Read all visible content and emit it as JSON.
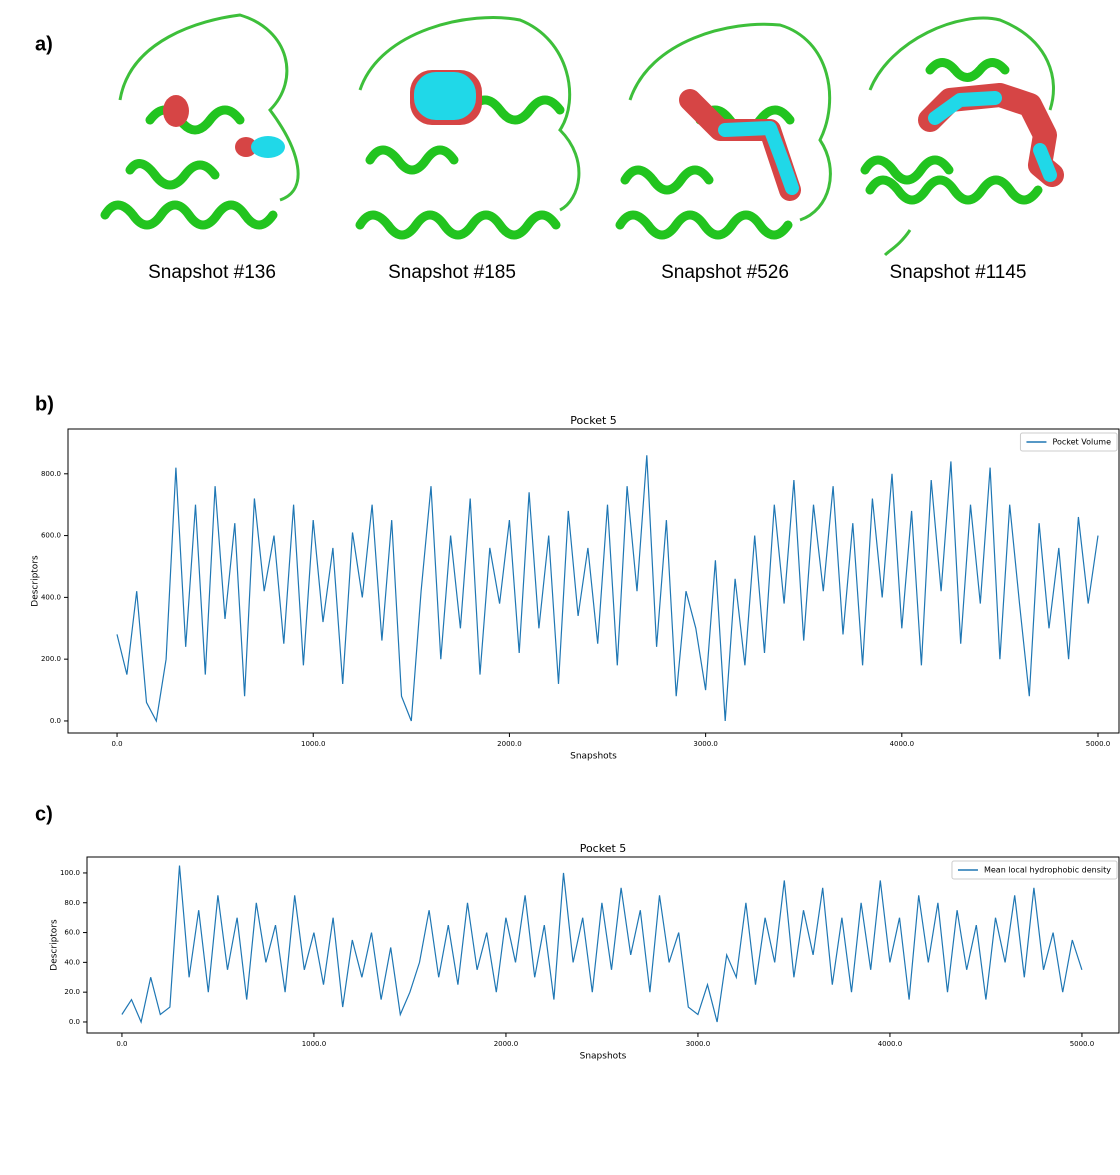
{
  "panel_a": {
    "label": "a)",
    "captions": [
      "Snapshot #136",
      "Snapshot #185",
      "Snapshot #526",
      "Snapshot #1145"
    ]
  },
  "panel_b": {
    "label": "b)"
  },
  "panel_c": {
    "label": "c)"
  },
  "chart_data": [
    {
      "type": "line",
      "title": "Pocket 5",
      "x_label": "Snapshots",
      "y_label": "Descriptors",
      "xlim": [
        -250,
        5107
      ],
      "ylim": [
        -39,
        945
      ],
      "legend": "upper right",
      "xticks": [
        {
          "value": 0,
          "label": "0.0"
        },
        {
          "value": 1000,
          "label": "1000.0"
        },
        {
          "value": 2000,
          "label": "2000.0"
        },
        {
          "value": 3000,
          "label": "3000.0"
        },
        {
          "value": 4000,
          "label": "4000.0"
        },
        {
          "value": 5000,
          "label": "5000.0"
        }
      ],
      "yticks": [
        {
          "value": 0,
          "label": "0.0"
        },
        {
          "value": 200,
          "label": "200.0"
        },
        {
          "value": 400,
          "label": "400.0"
        },
        {
          "value": 600,
          "label": "600.0"
        },
        {
          "value": 800,
          "label": "800.0"
        }
      ],
      "x": [
        0,
        50,
        100,
        150,
        200,
        250,
        300,
        350,
        400,
        450,
        500,
        550,
        600,
        650,
        700,
        750,
        800,
        850,
        900,
        950,
        1000,
        1050,
        1100,
        1150,
        1200,
        1250,
        1300,
        1350,
        1400,
        1450,
        1500,
        1550,
        1600,
        1650,
        1700,
        1750,
        1800,
        1850,
        1900,
        1950,
        2000,
        2050,
        2100,
        2150,
        2200,
        2250,
        2300,
        2350,
        2400,
        2450,
        2500,
        2550,
        2600,
        2650,
        2700,
        2750,
        2800,
        2850,
        2900,
        2950,
        3000,
        3050,
        3100,
        3150,
        3200,
        3250,
        3300,
        3350,
        3400,
        3450,
        3500,
        3550,
        3600,
        3650,
        3700,
        3750,
        3800,
        3850,
        3900,
        3950,
        4000,
        4050,
        4100,
        4150,
        4200,
        4250,
        4300,
        4350,
        4400,
        4450,
        4500,
        4550,
        4600,
        4650,
        4700,
        4750,
        4800,
        4850,
        4900,
        4950,
        5000
      ],
      "series": [
        {
          "name": "Pocket Volume",
          "color": "#1f77b4",
          "values": [
            280,
            150,
            420,
            60,
            0,
            200,
            820,
            240,
            700,
            150,
            760,
            330,
            640,
            80,
            720,
            420,
            600,
            250,
            700,
            180,
            650,
            320,
            560,
            120,
            610,
            400,
            700,
            260,
            650,
            80,
            0,
            420,
            760,
            200,
            600,
            300,
            720,
            150,
            560,
            380,
            650,
            220,
            740,
            300,
            600,
            120,
            680,
            340,
            560,
            250,
            700,
            180,
            760,
            420,
            860,
            240,
            650,
            80,
            420,
            300,
            100,
            520,
            0,
            460,
            180,
            600,
            220,
            700,
            380,
            780,
            260,
            700,
            420,
            760,
            280,
            640,
            180,
            720,
            400,
            800,
            300,
            680,
            180,
            780,
            420,
            840,
            250,
            700,
            380,
            820,
            200,
            700,
            380,
            80,
            640,
            300,
            560,
            200,
            660,
            380,
            600
          ]
        }
      ]
    },
    {
      "type": "line",
      "title": "Pocket 5",
      "x_label": "Snapshots",
      "y_label": "Descriptors",
      "xlim": [
        -182,
        5193
      ],
      "ylim": [
        -7.4,
        110.7
      ],
      "legend": "upper right",
      "xticks": [
        {
          "value": 0,
          "label": "0.0"
        },
        {
          "value": 1000,
          "label": "1000.0"
        },
        {
          "value": 2000,
          "label": "2000.0"
        },
        {
          "value": 3000,
          "label": "3000.0"
        },
        {
          "value": 4000,
          "label": "4000.0"
        },
        {
          "value": 5000,
          "label": "5000.0"
        }
      ],
      "yticks": [
        {
          "value": 0,
          "label": "0.0"
        },
        {
          "value": 20,
          "label": "20.0"
        },
        {
          "value": 40,
          "label": "40.0"
        },
        {
          "value": 60,
          "label": "60.0"
        },
        {
          "value": 80,
          "label": "80.0"
        },
        {
          "value": 100,
          "label": "100.0"
        }
      ],
      "x": [
        0,
        50,
        100,
        150,
        200,
        250,
        300,
        350,
        400,
        450,
        500,
        550,
        600,
        650,
        700,
        750,
        800,
        850,
        900,
        950,
        1000,
        1050,
        1100,
        1150,
        1200,
        1250,
        1300,
        1350,
        1400,
        1450,
        1500,
        1550,
        1600,
        1650,
        1700,
        1750,
        1800,
        1850,
        1900,
        1950,
        2000,
        2050,
        2100,
        2150,
        2200,
        2250,
        2300,
        2350,
        2400,
        2450,
        2500,
        2550,
        2600,
        2650,
        2700,
        2750,
        2800,
        2850,
        2900,
        2950,
        3000,
        3050,
        3100,
        3150,
        3200,
        3250,
        3300,
        3350,
        3400,
        3450,
        3500,
        3550,
        3600,
        3650,
        3700,
        3750,
        3800,
        3850,
        3900,
        3950,
        4000,
        4050,
        4100,
        4150,
        4200,
        4250,
        4300,
        4350,
        4400,
        4450,
        4500,
        4550,
        4600,
        4650,
        4700,
        4750,
        4800,
        4850,
        4900,
        4950,
        5000
      ],
      "series": [
        {
          "name": "Mean local hydrophobic density",
          "color": "#1f77b4",
          "values": [
            5,
            15,
            0,
            30,
            5,
            10,
            105,
            30,
            75,
            20,
            85,
            35,
            70,
            15,
            80,
            40,
            65,
            20,
            85,
            35,
            60,
            25,
            70,
            10,
            55,
            30,
            60,
            15,
            50,
            5,
            20,
            40,
            75,
            30,
            65,
            25,
            80,
            35,
            60,
            20,
            70,
            40,
            85,
            30,
            65,
            15,
            100,
            40,
            70,
            20,
            80,
            35,
            90,
            45,
            75,
            20,
            85,
            40,
            60,
            10,
            5,
            25,
            0,
            45,
            30,
            80,
            25,
            70,
            40,
            95,
            30,
            75,
            45,
            90,
            25,
            70,
            20,
            80,
            35,
            95,
            40,
            70,
            15,
            85,
            40,
            80,
            20,
            75,
            35,
            65,
            15,
            70,
            40,
            85,
            30,
            90,
            35,
            60,
            20,
            55,
            35
          ]
        }
      ]
    }
  ]
}
